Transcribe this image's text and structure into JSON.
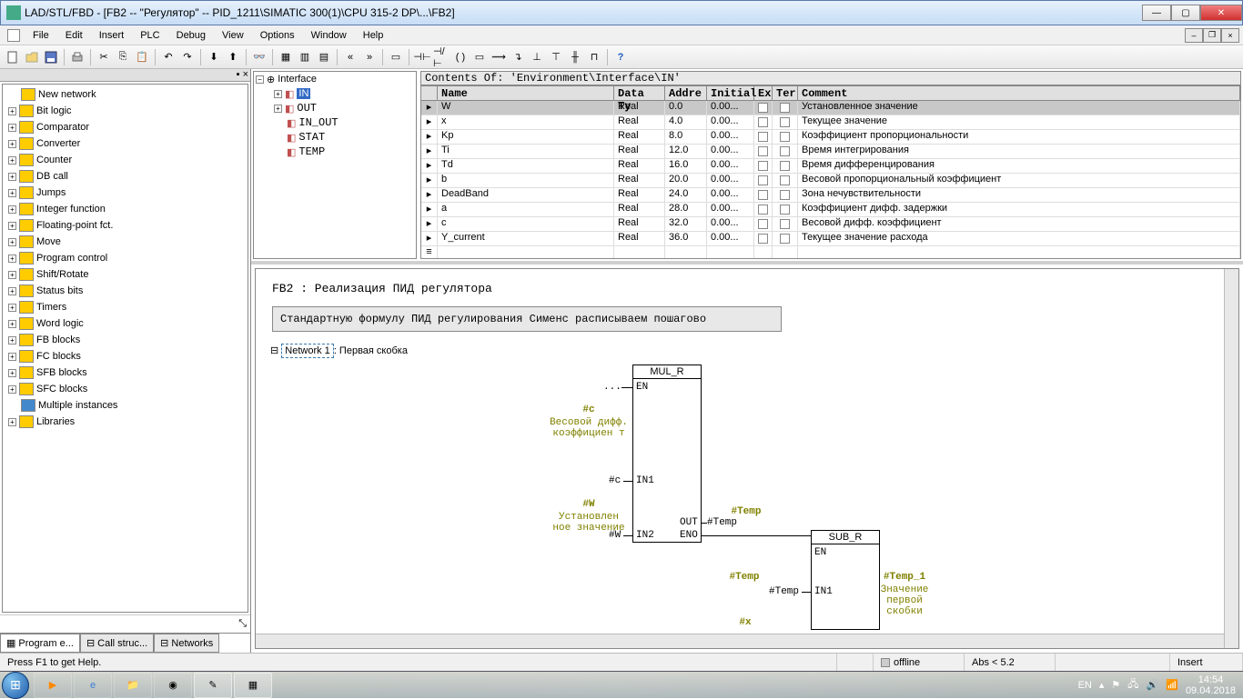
{
  "window": {
    "title": "LAD/STL/FBD  - [FB2 -- \"Регулятор\" -- PID_1211\\SIMATIC 300(1)\\CPU 315-2 DP\\...\\FB2]"
  },
  "menu": {
    "file": "File",
    "edit": "Edit",
    "insert": "Insert",
    "plc": "PLC",
    "debug": "Debug",
    "view": "View",
    "options": "Options",
    "window": "Window",
    "help": "Help"
  },
  "catalog": {
    "items": [
      {
        "exp": "",
        "icon": "#ffcc00",
        "label": "New network"
      },
      {
        "exp": "+",
        "icon": "#ffcc00",
        "label": "Bit logic"
      },
      {
        "exp": "+",
        "icon": "#ffcc00",
        "label": "Comparator"
      },
      {
        "exp": "+",
        "icon": "#ffcc00",
        "label": "Converter"
      },
      {
        "exp": "+",
        "icon": "#ffcc00",
        "label": "Counter"
      },
      {
        "exp": "+",
        "icon": "#ffcc00",
        "label": "DB call"
      },
      {
        "exp": "+",
        "icon": "#ffcc00",
        "label": "Jumps"
      },
      {
        "exp": "+",
        "icon": "#ffcc00",
        "label": "Integer function"
      },
      {
        "exp": "+",
        "icon": "#ffcc00",
        "label": "Floating-point fct."
      },
      {
        "exp": "+",
        "icon": "#ffcc00",
        "label": "Move"
      },
      {
        "exp": "+",
        "icon": "#ffcc00",
        "label": "Program control"
      },
      {
        "exp": "+",
        "icon": "#ffcc00",
        "label": "Shift/Rotate"
      },
      {
        "exp": "+",
        "icon": "#ffcc00",
        "label": "Status bits"
      },
      {
        "exp": "+",
        "icon": "#ffcc00",
        "label": "Timers"
      },
      {
        "exp": "+",
        "icon": "#ffcc00",
        "label": "Word logic"
      },
      {
        "exp": "+",
        "icon": "#ffcc00",
        "label": "FB blocks"
      },
      {
        "exp": "+",
        "icon": "#ffcc00",
        "label": "FC blocks"
      },
      {
        "exp": "+",
        "icon": "#ffcc00",
        "label": "SFB blocks"
      },
      {
        "exp": "+",
        "icon": "#ffcc00",
        "label": "SFC blocks"
      },
      {
        "exp": "",
        "icon": "#4488cc",
        "label": "Multiple instances"
      },
      {
        "exp": "+",
        "icon": "#ffcc00",
        "label": "Libraries"
      }
    ],
    "tabs": {
      "t1": "Program e...",
      "t2": "Call struc...",
      "t3": "Networks"
    }
  },
  "interfaceTree": {
    "root": "Interface",
    "children": [
      {
        "label": "IN",
        "selected": true,
        "icon": "▸"
      },
      {
        "label": "OUT",
        "icon": "▸"
      },
      {
        "label": "IN_OUT",
        "icon": "▸"
      },
      {
        "label": "STAT",
        "icon": "▪"
      },
      {
        "label": "TEMP",
        "icon": "▪"
      }
    ]
  },
  "contentsHeader": "Contents Of: 'Environment\\Interface\\IN'",
  "vars": {
    "cols": {
      "name": "Name",
      "type": "Data Ty",
      "addr": "Addre",
      "init": "Initial",
      "ex": "Ex",
      "ter": "Ter",
      "comment": "Comment"
    },
    "rows": [
      {
        "name": "W",
        "type": "Real",
        "addr": "0.0",
        "init": "0.00...",
        "comment": "Установленное значение",
        "sel": true
      },
      {
        "name": "x",
        "type": "Real",
        "addr": "4.0",
        "init": "0.00...",
        "comment": "Текущее значение"
      },
      {
        "name": "Kp",
        "type": "Real",
        "addr": "8.0",
        "init": "0.00...",
        "comment": "Коэффициент пропорциональности"
      },
      {
        "name": "Ti",
        "type": "Real",
        "addr": "12.0",
        "init": "0.00...",
        "comment": "Время интегрирования"
      },
      {
        "name": "Td",
        "type": "Real",
        "addr": "16.0",
        "init": "0.00...",
        "comment": "Время дифференцирования"
      },
      {
        "name": "b",
        "type": "Real",
        "addr": "20.0",
        "init": "0.00...",
        "comment": "Весовой пропорциональный коэффициент"
      },
      {
        "name": "DeadBand",
        "type": "Real",
        "addr": "24.0",
        "init": "0.00...",
        "comment": "Зона нечувствительности"
      },
      {
        "name": "a",
        "type": "Real",
        "addr": "28.0",
        "init": "0.00...",
        "comment": "Коэффициент дифф. задержки"
      },
      {
        "name": "c",
        "type": "Real",
        "addr": "32.0",
        "init": "0.00...",
        "comment": "Весовой дифф. коэффициент"
      },
      {
        "name": "Y_current",
        "type": "Real",
        "addr": "36.0",
        "init": "0.00...",
        "comment": "Текущее значение расхода"
      }
    ]
  },
  "editor": {
    "title": "FB2 : Реализация ПИД регулятора",
    "comment": "Стандартную формулу ПИД регулирования Сименс расписываем пошагово",
    "network": {
      "label": "Network 1",
      "title": ": Первая скобка"
    },
    "box1": {
      "name": "MUL_R",
      "en": "EN",
      "in1": "IN1",
      "in2": "IN2",
      "eno": "ENO",
      "out": "OUT"
    },
    "box2": {
      "name": "SUB_R",
      "en": "EN",
      "in1": "IN1"
    },
    "sig": {
      "dots": "...",
      "c_h": "#c",
      "c_d": "Весовой дифф. коэффициен т",
      "c_v": "#c",
      "w_h": "#W",
      "w_d": "Установлен ное значение",
      "w_v": "#W",
      "temp_h": "#Temp",
      "temp_v": "#Temp",
      "temp2_h": "#Temp",
      "temp2_v": "#Temp",
      "x_h": "#x",
      "t1_h": "#Temp_1",
      "t1_d": "Значение первой скобки"
    }
  },
  "status": {
    "help": "Press F1 to get Help.",
    "offline": "offline",
    "abs": "Abs < 5.2",
    "insert": "Insert"
  },
  "taskbar": {
    "lang": "EN",
    "time": "14:54",
    "date": "09.04.2018"
  }
}
